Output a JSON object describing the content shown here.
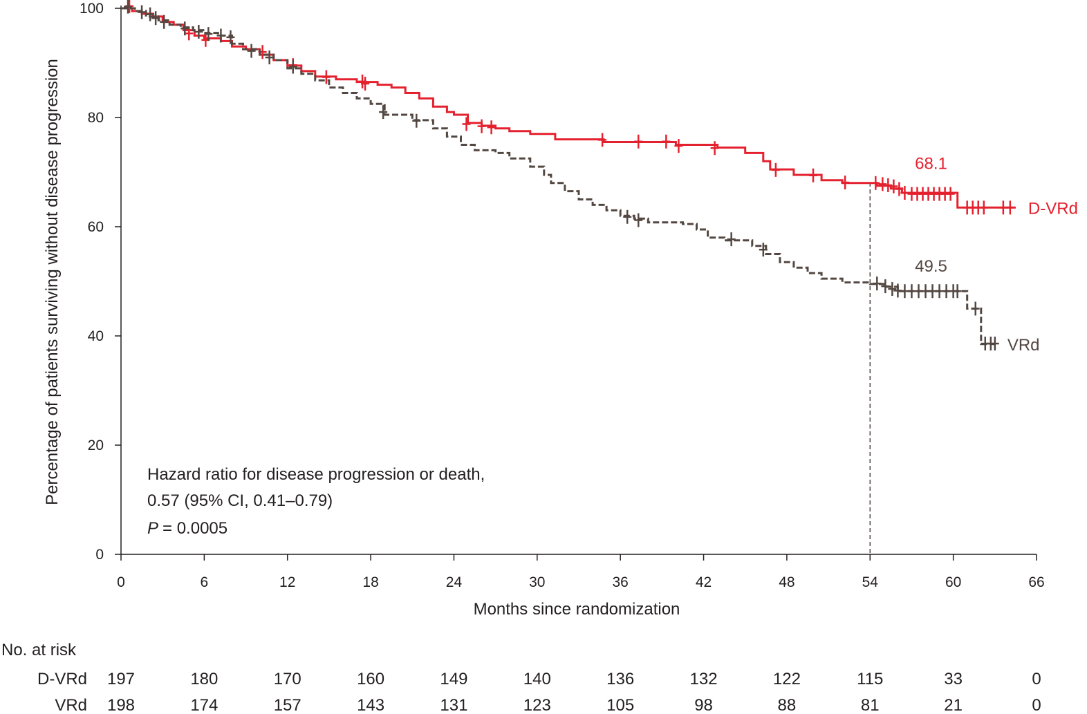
{
  "chart_data": {
    "type": "line",
    "subtype": "kaplan-meier",
    "xlabel": "Months since randomization",
    "ylabel": "Percentage of patients surviving without disease progression",
    "xlim": [
      0,
      66
    ],
    "ylim": [
      0,
      100
    ],
    "x_ticks": [
      0,
      6,
      12,
      18,
      24,
      30,
      36,
      42,
      48,
      54,
      60,
      66
    ],
    "y_ticks": [
      0,
      20,
      40,
      60,
      80,
      100
    ],
    "colors": {
      "D-VRd": "#e4212e",
      "VRd": "#534741",
      "axis": "#231f20"
    },
    "series": [
      {
        "name": "D-VRd",
        "style": "solid",
        "end_label": "D-VRd",
        "steps": [
          [
            0,
            100
          ],
          [
            0.8,
            99.5
          ],
          [
            1.5,
            99
          ],
          [
            2.3,
            98.5
          ],
          [
            3,
            97.5
          ],
          [
            3.8,
            97
          ],
          [
            4.5,
            96
          ],
          [
            5.3,
            95
          ],
          [
            6,
            94.5
          ],
          [
            7.2,
            94
          ],
          [
            8,
            93
          ],
          [
            9,
            92.5
          ],
          [
            10,
            91.5
          ],
          [
            11,
            90.5
          ],
          [
            12,
            89.5
          ],
          [
            13,
            88.5
          ],
          [
            14,
            87.5
          ],
          [
            15.5,
            87
          ],
          [
            17,
            86.5
          ],
          [
            18.5,
            86
          ],
          [
            19.5,
            85.5
          ],
          [
            20.5,
            84.5
          ],
          [
            21.5,
            83.5
          ],
          [
            22.5,
            82
          ],
          [
            23.5,
            81
          ],
          [
            24,
            80.5
          ],
          [
            25,
            79
          ],
          [
            26,
            78.5
          ],
          [
            27,
            78
          ],
          [
            28,
            77.5
          ],
          [
            29.5,
            77
          ],
          [
            31.3,
            76
          ],
          [
            34,
            76
          ],
          [
            34.8,
            75.5
          ],
          [
            38,
            75.5
          ],
          [
            40,
            75
          ],
          [
            43,
            74.5
          ],
          [
            45,
            73.5
          ],
          [
            46.3,
            72
          ],
          [
            46.8,
            70.5
          ],
          [
            48.5,
            69.5
          ],
          [
            50.5,
            68.5
          ],
          [
            52,
            68
          ],
          [
            54.5,
            67.5
          ],
          [
            55.5,
            67
          ],
          [
            56.3,
            66.2
          ],
          [
            60.3,
            65
          ],
          [
            60.3,
            63.5
          ],
          [
            64.5,
            63.5
          ]
        ],
        "censored": [
          [
            0.6,
            100.4
          ],
          [
            4.9,
            95.4
          ],
          [
            6.1,
            94.2
          ],
          [
            10.2,
            92
          ],
          [
            12.4,
            89.6
          ],
          [
            14.8,
            87.4
          ],
          [
            17.4,
            86.6
          ],
          [
            17.6,
            86.2
          ],
          [
            24.9,
            78.8
          ],
          [
            26,
            78.4
          ],
          [
            26.7,
            78.2
          ],
          [
            34.7,
            75.9
          ],
          [
            37.3,
            75.6
          ],
          [
            39.3,
            75.6
          ],
          [
            40.2,
            74.8
          ],
          [
            42.8,
            74.4
          ],
          [
            47.2,
            70.4
          ],
          [
            49.9,
            69.4
          ],
          [
            52.2,
            68.1
          ],
          [
            54.4,
            68
          ],
          [
            54.9,
            67.8
          ],
          [
            55.3,
            67.6
          ],
          [
            55.7,
            67.4
          ],
          [
            56.1,
            66.9
          ],
          [
            56.5,
            66.2
          ],
          [
            57,
            66
          ],
          [
            57.4,
            66
          ],
          [
            57.8,
            66
          ],
          [
            58.2,
            66
          ],
          [
            58.6,
            66
          ],
          [
            59,
            66
          ],
          [
            59.4,
            66
          ],
          [
            59.8,
            66
          ],
          [
            61,
            63.5
          ],
          [
            61.4,
            63.5
          ],
          [
            61.8,
            63.5
          ],
          [
            62.2,
            63.5
          ],
          [
            63.6,
            63.5
          ],
          [
            64.1,
            63.5
          ]
        ],
        "annotation": {
          "x": 58.4,
          "y": 70.6,
          "text": "68.1"
        }
      },
      {
        "name": "VRd",
        "style": "dashed",
        "end_label": "VRd",
        "steps": [
          [
            0,
            100
          ],
          [
            1,
            99.5
          ],
          [
            1.8,
            98.5
          ],
          [
            2.7,
            97.8
          ],
          [
            3.5,
            97
          ],
          [
            4.3,
            96.5
          ],
          [
            5.2,
            96
          ],
          [
            6,
            95.5
          ],
          [
            7,
            95
          ],
          [
            8,
            93.5
          ],
          [
            8.8,
            92.5
          ],
          [
            10,
            91.5
          ],
          [
            11,
            90.5
          ],
          [
            12,
            89
          ],
          [
            13,
            88
          ],
          [
            14,
            86.8
          ],
          [
            15,
            85.5
          ],
          [
            16,
            84.5
          ],
          [
            17,
            83.5
          ],
          [
            18,
            82.5
          ],
          [
            19,
            80.5
          ],
          [
            21,
            79.5
          ],
          [
            22.5,
            78
          ],
          [
            23.5,
            76.5
          ],
          [
            24.5,
            75
          ],
          [
            25.5,
            74
          ],
          [
            27,
            73.5
          ],
          [
            28,
            72.5
          ],
          [
            29.5,
            71
          ],
          [
            30.5,
            69.5
          ],
          [
            31,
            68
          ],
          [
            32,
            66.5
          ],
          [
            33,
            65
          ],
          [
            34,
            64
          ],
          [
            35,
            63
          ],
          [
            36,
            62
          ],
          [
            37,
            61.5
          ],
          [
            38,
            60.8
          ],
          [
            40.5,
            60.5
          ],
          [
            41.5,
            59.5
          ],
          [
            42.3,
            58
          ],
          [
            43.5,
            57.5
          ],
          [
            45.5,
            56.5
          ],
          [
            46.5,
            55
          ],
          [
            47.5,
            53.5
          ],
          [
            48.5,
            52.5
          ],
          [
            49.5,
            51.5
          ],
          [
            50.5,
            50.5
          ],
          [
            52,
            49.8
          ],
          [
            54,
            49.5
          ],
          [
            55,
            49
          ],
          [
            56,
            48.2
          ],
          [
            61,
            48.2
          ],
          [
            61,
            45
          ],
          [
            62,
            45
          ],
          [
            62,
            38.5
          ],
          [
            63,
            38.5
          ]
        ],
        "censored": [
          [
            0.5,
            100.3
          ],
          [
            1.5,
            99.3
          ],
          [
            2.1,
            98.9
          ],
          [
            2.5,
            98.2
          ],
          [
            3.1,
            97.5
          ],
          [
            4.6,
            96.3
          ],
          [
            5.6,
            95.7
          ],
          [
            6.3,
            95.3
          ],
          [
            7.2,
            95
          ],
          [
            7.9,
            94.7
          ],
          [
            9.4,
            92.2
          ],
          [
            10.7,
            91
          ],
          [
            12.4,
            89.3
          ],
          [
            18.9,
            81
          ],
          [
            21.3,
            79.4
          ],
          [
            36.5,
            61.8
          ],
          [
            37.3,
            61.2
          ],
          [
            44,
            57.7
          ],
          [
            46.3,
            55.8
          ],
          [
            54.5,
            49.6
          ],
          [
            55.1,
            49.1
          ],
          [
            55.6,
            48.6
          ],
          [
            56,
            48.3
          ],
          [
            56.5,
            48.2
          ],
          [
            57,
            48.2
          ],
          [
            57.5,
            48.2
          ],
          [
            58,
            48.2
          ],
          [
            58.5,
            48.2
          ],
          [
            59,
            48.2
          ],
          [
            59.5,
            48.2
          ],
          [
            60,
            48.2
          ],
          [
            60.3,
            48.2
          ],
          [
            61.6,
            45
          ],
          [
            62.3,
            38.6
          ],
          [
            62.7,
            38.6
          ],
          [
            63,
            38.6
          ]
        ],
        "annotation": {
          "x": 58.4,
          "y": 51.8,
          "text": "49.5"
        }
      }
    ],
    "landmark_x": 54,
    "hazard_text": {
      "line1": "Hazard ratio for disease progression or death,",
      "line2": "0.57 (95% CI, 0.41–0.79)",
      "p_label": "P",
      "p_value": "= 0.0005"
    },
    "risk_table": {
      "title": "No. at risk",
      "timepoints": [
        0,
        6,
        12,
        18,
        24,
        30,
        36,
        42,
        48,
        54,
        60,
        66
      ],
      "rows": [
        {
          "label": "D-VRd",
          "values": [
            197,
            180,
            170,
            160,
            149,
            140,
            136,
            132,
            122,
            115,
            33,
            0
          ]
        },
        {
          "label": "VRd",
          "values": [
            198,
            174,
            157,
            143,
            131,
            123,
            105,
            98,
            88,
            81,
            21,
            0
          ]
        }
      ]
    }
  }
}
